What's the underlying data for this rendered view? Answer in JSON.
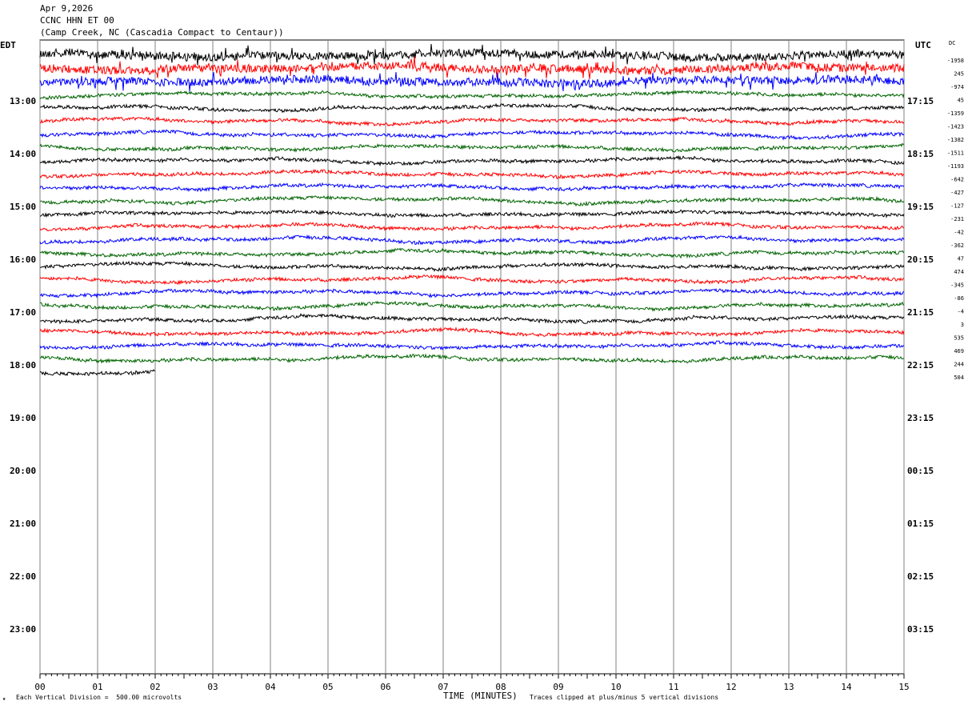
{
  "header": {
    "date": "Apr 9,2026",
    "station": "CCNC HHN ET 00",
    "location": "(Camp Creek, NC (Cascadia Compact to Centaur))"
  },
  "left_tz": "EDT",
  "right_tz": "UTC",
  "dc_label": "DC",
  "footer": {
    "mark": "★",
    "scale_note": "Each Vertical Division =  500.00 microvolts",
    "clip_note": "Traces clipped at plus/minus 5 vertical divisions"
  },
  "chart_data": {
    "type": "line",
    "subtype": "helicorder",
    "xlabel": "TIME (MINUTES)",
    "x_ticks": [
      "00",
      "01",
      "02",
      "03",
      "04",
      "05",
      "06",
      "07",
      "08",
      "09",
      "10",
      "11",
      "12",
      "13",
      "14",
      "15"
    ],
    "xlim": [
      0,
      15
    ],
    "left_hour_labels": [
      "13:00",
      "14:00",
      "15:00",
      "16:00",
      "17:00",
      "18:00",
      "19:00",
      "20:00",
      "21:00",
      "22:00",
      "23:00"
    ],
    "right_hour_labels": [
      "17:15",
      "18:15",
      "19:15",
      "20:15",
      "21:15",
      "22:15",
      "23:15",
      "00:15",
      "01:15",
      "02:15",
      "03:15"
    ],
    "trace_colors": [
      "#000000",
      "#ff0000",
      "#0000ff",
      "#006400"
    ],
    "trace_count": 25,
    "last_trace_end_minute": 2,
    "high_amplitude_traces": [
      0,
      1,
      2
    ],
    "dc_offsets": [
      -1958,
      245,
      -974,
      45,
      -1359,
      -1423,
      -1382,
      -1511,
      -1193,
      -642,
      -427,
      -127,
      -231,
      -42,
      -362,
      47,
      474,
      -345,
      -86,
      -4,
      3,
      535,
      469,
      244,
      504
    ]
  }
}
